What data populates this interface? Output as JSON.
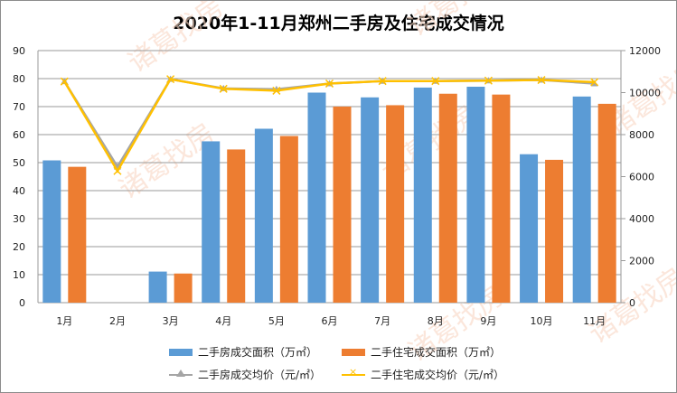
{
  "chart_data": {
    "type": "bar+line",
    "title": "2020年1-11月郑州二手房及住宅成交情况",
    "categories": [
      "1月",
      "2月",
      "3月",
      "4月",
      "5月",
      "6月",
      "7月",
      "8月",
      "9月",
      "10月",
      "11月"
    ],
    "y_left": {
      "range": [
        0,
        90
      ],
      "ticks": [
        0,
        10,
        20,
        30,
        40,
        50,
        60,
        70,
        80,
        90
      ]
    },
    "y_right": {
      "range": [
        0,
        12000
      ],
      "ticks": [
        0,
        2000,
        4000,
        6000,
        8000,
        10000,
        12000
      ]
    },
    "grid": true,
    "legend_position": "bottom",
    "series": [
      {
        "name": "二手房成交面积（万㎡）",
        "type": "bar",
        "axis": "left",
        "color": "#5b9bd5",
        "values": [
          50.8,
          0,
          11.1,
          57.6,
          62.1,
          75.0,
          73.3,
          76.8,
          77.1,
          53.0,
          73.6
        ]
      },
      {
        "name": "二手住宅成交面积（万㎡）",
        "type": "bar",
        "axis": "left",
        "color": "#ed7d31",
        "values": [
          48.5,
          0,
          10.4,
          54.7,
          59.5,
          70.0,
          70.5,
          74.6,
          74.3,
          51.0,
          71.0
        ]
      },
      {
        "name": "二手房成交均价（元/㎡）",
        "type": "line",
        "axis": "right",
        "color": "#a5a5a5",
        "marker": "triangle",
        "values": [
          10530,
          6470,
          10640,
          10200,
          10160,
          10430,
          10550,
          10550,
          10570,
          10600,
          10430
        ]
      },
      {
        "name": "二手住宅成交均价（元/㎡）",
        "type": "line",
        "axis": "right",
        "color": "#ffc000",
        "marker": "x",
        "values": [
          10530,
          6270,
          10640,
          10180,
          10090,
          10430,
          10550,
          10550,
          10570,
          10600,
          10500
        ]
      }
    ]
  },
  "watermark": "诸葛找房"
}
